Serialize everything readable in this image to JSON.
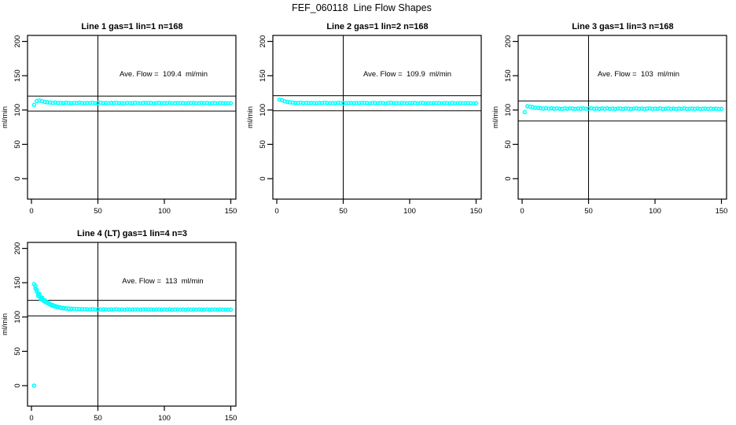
{
  "page": {
    "title": "FEF_060118  Line Flow Shapes"
  },
  "colors": {
    "marker": "#00FFFF",
    "axis": "#000000",
    "background": "#FFFFFF"
  },
  "chart_data": [
    {
      "id": "line1",
      "type": "scatter",
      "title": "Line 1 gas=1 lin=1 n=168",
      "annotation": "Ave. Flow =  109.4  ml/min",
      "ave_flow": 109.4,
      "ylabel": "ml/min",
      "x_ticks": [
        0,
        50,
        100,
        150
      ],
      "y_ticks": [
        0,
        50,
        100,
        150,
        200
      ],
      "ylim": [
        0,
        200
      ],
      "xlim": [
        0,
        155
      ],
      "hlines": [
        120.3,
        98.5
      ],
      "vline": 50,
      "x_start": 2,
      "x_step": 2,
      "y": [
        107.5,
        113.2,
        113.8,
        112.9,
        111.8,
        111.2,
        110.9,
        110.4,
        110.8,
        110.1,
        110.5,
        109.9,
        110.6,
        110.2,
        109.8,
        110.4,
        110.0,
        110.7,
        110.1,
        109.7,
        110.3,
        110.0,
        110.5,
        109.8,
        110.2,
        110.6,
        109.9,
        110.3,
        109.7,
        110.4,
        110.0,
        110.5,
        109.8,
        110.2,
        109.6,
        110.3,
        110.1,
        109.8,
        110.4,
        110.0,
        109.7,
        110.2,
        110.5,
        109.9,
        110.3,
        109.6,
        110.1,
        110.4,
        109.8,
        110.2,
        109.9,
        110.5,
        109.7,
        110.0,
        110.3,
        109.8,
        110.1,
        109.6,
        110.2,
        109.9,
        110.4,
        109.7,
        110.0,
        110.2,
        109.8,
        110.3,
        109.6,
        109.9,
        110.1,
        109.7,
        110.2,
        109.8,
        110.0,
        109.6,
        109.9
      ],
      "extra_points": [],
      "outliers": []
    },
    {
      "id": "line2",
      "type": "scatter",
      "title": "Line 2 gas=1 lin=2 n=168",
      "annotation": "Ave. Flow =  109.9  ml/min",
      "ave_flow": 109.9,
      "ylabel": "ml/min",
      "x_ticks": [
        0,
        50,
        100,
        150
      ],
      "y_ticks": [
        0,
        50,
        100,
        150,
        200
      ],
      "ylim": [
        0,
        200
      ],
      "xlim": [
        0,
        155
      ],
      "hlines": [
        120.9,
        98.9
      ],
      "vline": 50,
      "x_start": 2,
      "x_step": 2,
      "y": [
        115.0,
        114.2,
        112.8,
        111.8,
        111.2,
        110.8,
        110.5,
        110.2,
        110.6,
        110.0,
        110.4,
        109.9,
        110.3,
        110.1,
        109.8,
        110.4,
        110.0,
        110.6,
        110.2,
        109.8,
        110.3,
        109.9,
        110.5,
        110.1,
        109.7,
        110.2,
        110.0,
        110.4,
        109.8,
        110.3,
        109.9,
        110.5,
        110.0,
        110.2,
        109.7,
        110.3,
        110.1,
        109.8,
        110.4,
        110.0,
        109.7,
        110.2,
        110.5,
        109.9,
        110.1,
        109.6,
        110.3,
        110.0,
        109.8,
        110.2,
        109.9,
        110.4,
        109.7,
        110.1,
        110.3,
        109.8,
        110.0,
        109.6,
        110.2,
        109.9,
        110.3,
        109.7,
        110.1,
        110.0,
        109.8,
        110.2,
        109.6,
        110.0,
        110.1,
        109.7,
        110.2,
        109.8,
        109.9,
        109.6,
        110.0
      ],
      "extra_points": [],
      "outliers": []
    },
    {
      "id": "line3",
      "type": "scatter",
      "title": "Line 3 gas=1 lin=3 n=168",
      "annotation": "Ave. Flow =  103  ml/min",
      "ave_flow": 103,
      "ylabel": "ml/min",
      "x_ticks": [
        0,
        50,
        100,
        150
      ],
      "y_ticks": [
        0,
        50,
        100,
        150,
        200
      ],
      "ylim": [
        0,
        200
      ],
      "xlim": [
        0,
        155
      ],
      "hlines": [
        113.3,
        84.0
      ],
      "vline": 50,
      "x_start": 2,
      "x_step": 2,
      "y": [
        97.0,
        105.5,
        105.0,
        104.2,
        103.4,
        103.0,
        102.6,
        102.2,
        102.7,
        102.1,
        102.5,
        101.9,
        102.4,
        102.0,
        101.7,
        102.3,
        101.9,
        102.5,
        102.1,
        101.7,
        102.2,
        101.9,
        102.4,
        101.8,
        102.1,
        102.5,
        101.8,
        102.2,
        101.6,
        102.3,
        101.9,
        102.4,
        101.7,
        102.1,
        101.5,
        102.2,
        102.0,
        101.7,
        102.3,
        101.9,
        101.6,
        102.1,
        102.4,
        101.8,
        102.2,
        101.5,
        102.0,
        102.3,
        101.7,
        102.1,
        101.8,
        102.4,
        101.6,
        101.9,
        102.2,
        101.7,
        102.0,
        101.5,
        102.1,
        101.8,
        102.3,
        101.6,
        101.9,
        102.1,
        101.7,
        102.2,
        101.5,
        101.8,
        102.0,
        101.6,
        102.1,
        101.7,
        101.9,
        101.5,
        101.8
      ],
      "extra_points": [],
      "outliers": []
    },
    {
      "id": "line4",
      "type": "scatter",
      "title": "Line 4 (LT) gas=1 lin=4 n=3",
      "annotation": "Ave. Flow =  113  ml/min",
      "ave_flow": 113,
      "ylabel": "ml/min",
      "x_ticks": [
        0,
        50,
        100,
        150
      ],
      "y_ticks": [
        0,
        50,
        100,
        150,
        200
      ],
      "ylim": [
        0,
        200
      ],
      "xlim": [
        0,
        155
      ],
      "hlines": [
        124.3,
        101.7
      ],
      "vline": 50,
      "x_start": 2,
      "x_step": 2,
      "y": [
        148.0,
        139.8,
        133.4,
        128.5,
        124.6,
        121.6,
        119.3,
        117.4,
        116.0,
        114.9,
        113.9,
        113.3,
        112.8,
        112.4,
        112.1,
        111.9,
        111.7,
        111.5,
        111.4,
        111.3,
        111.2,
        111.1,
        111.3,
        111.0,
        111.2,
        110.9,
        111.1,
        111.0,
        110.8,
        111.1,
        110.9,
        111.2,
        110.8,
        111.0,
        110.7,
        111.1,
        110.9,
        110.8,
        111.0,
        110.9,
        110.7,
        111.0,
        111.1,
        110.8,
        110.9,
        110.6,
        110.9,
        111.0,
        110.8,
        110.9,
        110.7,
        111.1,
        110.6,
        110.9,
        111.0,
        110.7,
        110.9,
        110.6,
        111.0,
        110.8,
        111.0,
        110.7,
        110.9,
        110.8,
        110.7,
        111.0,
        110.6,
        110.8,
        110.9,
        110.7,
        110.9,
        110.7,
        110.8,
        110.6,
        110.8
      ],
      "extra_points": [
        [
          3,
          145
        ],
        [
          3,
          141.5
        ],
        [
          4,
          137
        ],
        [
          5,
          134
        ],
        [
          5,
          131
        ],
        [
          6,
          130
        ],
        [
          7,
          128
        ],
        [
          7,
          126
        ],
        [
          8,
          125.5
        ],
        [
          9,
          123.8
        ],
        [
          10,
          122.5
        ],
        [
          11,
          121.5
        ],
        [
          12,
          120.3
        ],
        [
          13,
          119.2
        ],
        [
          14,
          118.2
        ],
        [
          15,
          117.3
        ],
        [
          16,
          116.5
        ],
        [
          17,
          115.8
        ],
        [
          18,
          115.2
        ],
        [
          19,
          114.6
        ],
        [
          20,
          114.1
        ],
        [
          22,
          113.2
        ],
        [
          24,
          112.6
        ],
        [
          26,
          112.2
        ],
        [
          28,
          111.9
        ],
        [
          30,
          111.6
        ]
      ],
      "outliers": [
        [
          2,
          0
        ]
      ]
    }
  ]
}
